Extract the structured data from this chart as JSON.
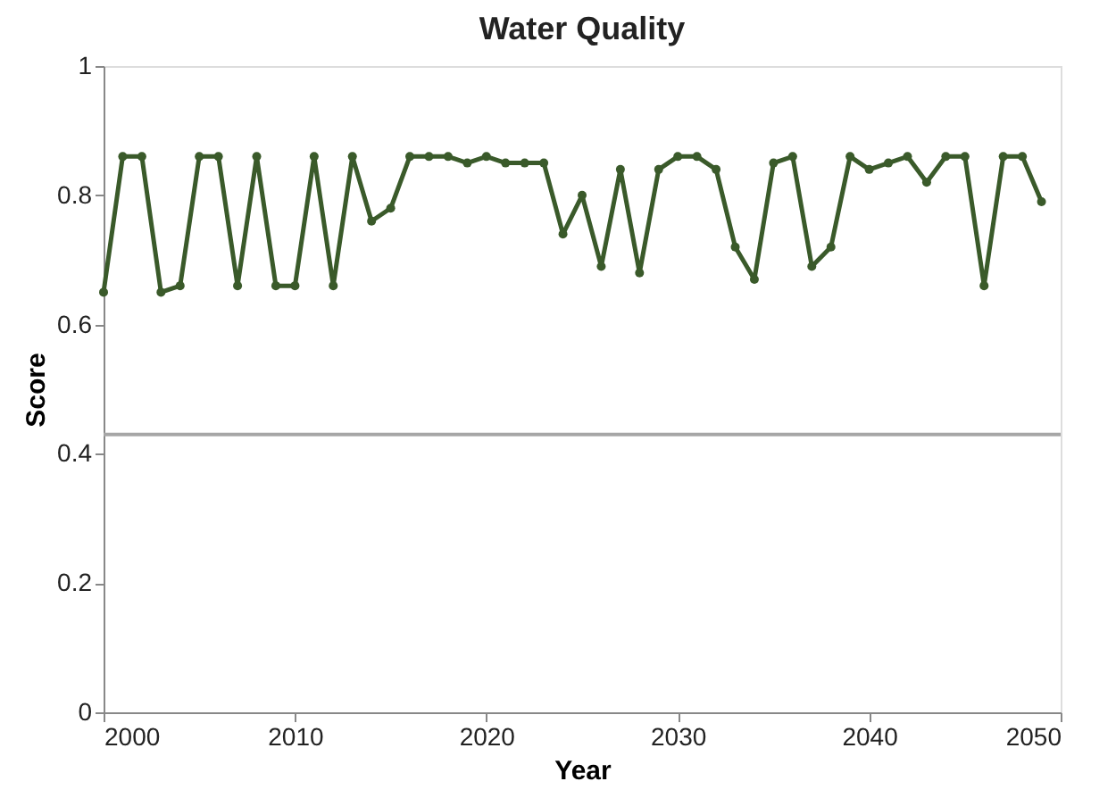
{
  "chart_data": {
    "type": "line",
    "title": "Water Quality",
    "xlabel": "Year",
    "ylabel": "Score",
    "x": [
      2000,
      2001,
      2002,
      2003,
      2004,
      2005,
      2006,
      2007,
      2008,
      2009,
      2010,
      2011,
      2012,
      2013,
      2014,
      2015,
      2016,
      2017,
      2018,
      2019,
      2020,
      2021,
      2022,
      2023,
      2024,
      2025,
      2026,
      2027,
      2028,
      2029,
      2030,
      2031,
      2032,
      2033,
      2034,
      2035,
      2036,
      2037,
      2038,
      2039,
      2040,
      2041,
      2042,
      2043,
      2044,
      2045,
      2046,
      2047,
      2048,
      2049
    ],
    "series": [
      {
        "color": "#3a5a2a",
        "values": [
          0.65,
          0.86,
          0.86,
          0.65,
          0.66,
          0.86,
          0.86,
          0.66,
          0.86,
          0.66,
          0.66,
          0.86,
          0.66,
          0.86,
          0.76,
          0.78,
          0.86,
          0.86,
          0.86,
          0.85,
          0.86,
          0.85,
          0.85,
          0.85,
          0.74,
          0.8,
          0.69,
          0.84,
          0.68,
          0.84,
          0.86,
          0.86,
          0.84,
          0.72,
          0.67,
          0.85,
          0.86,
          0.69,
          0.72,
          0.86,
          0.84,
          0.85,
          0.86,
          0.82,
          0.86,
          0.86,
          0.66,
          0.86,
          0.86,
          0.79
        ]
      }
    ],
    "xlim": [
      2000,
      2050
    ],
    "xticks": [
      2000,
      2010,
      2020,
      2030,
      2040,
      2050
    ],
    "ylim": [
      0,
      1
    ],
    "yticks": [
      0,
      0.2,
      0.4,
      0.6,
      0.8,
      1
    ],
    "ref_lines": [
      {
        "axis": "y",
        "value": 0.43,
        "color": "#a6a6a6"
      }
    ],
    "marker": "circle",
    "line_style": "solid",
    "grid": false
  }
}
